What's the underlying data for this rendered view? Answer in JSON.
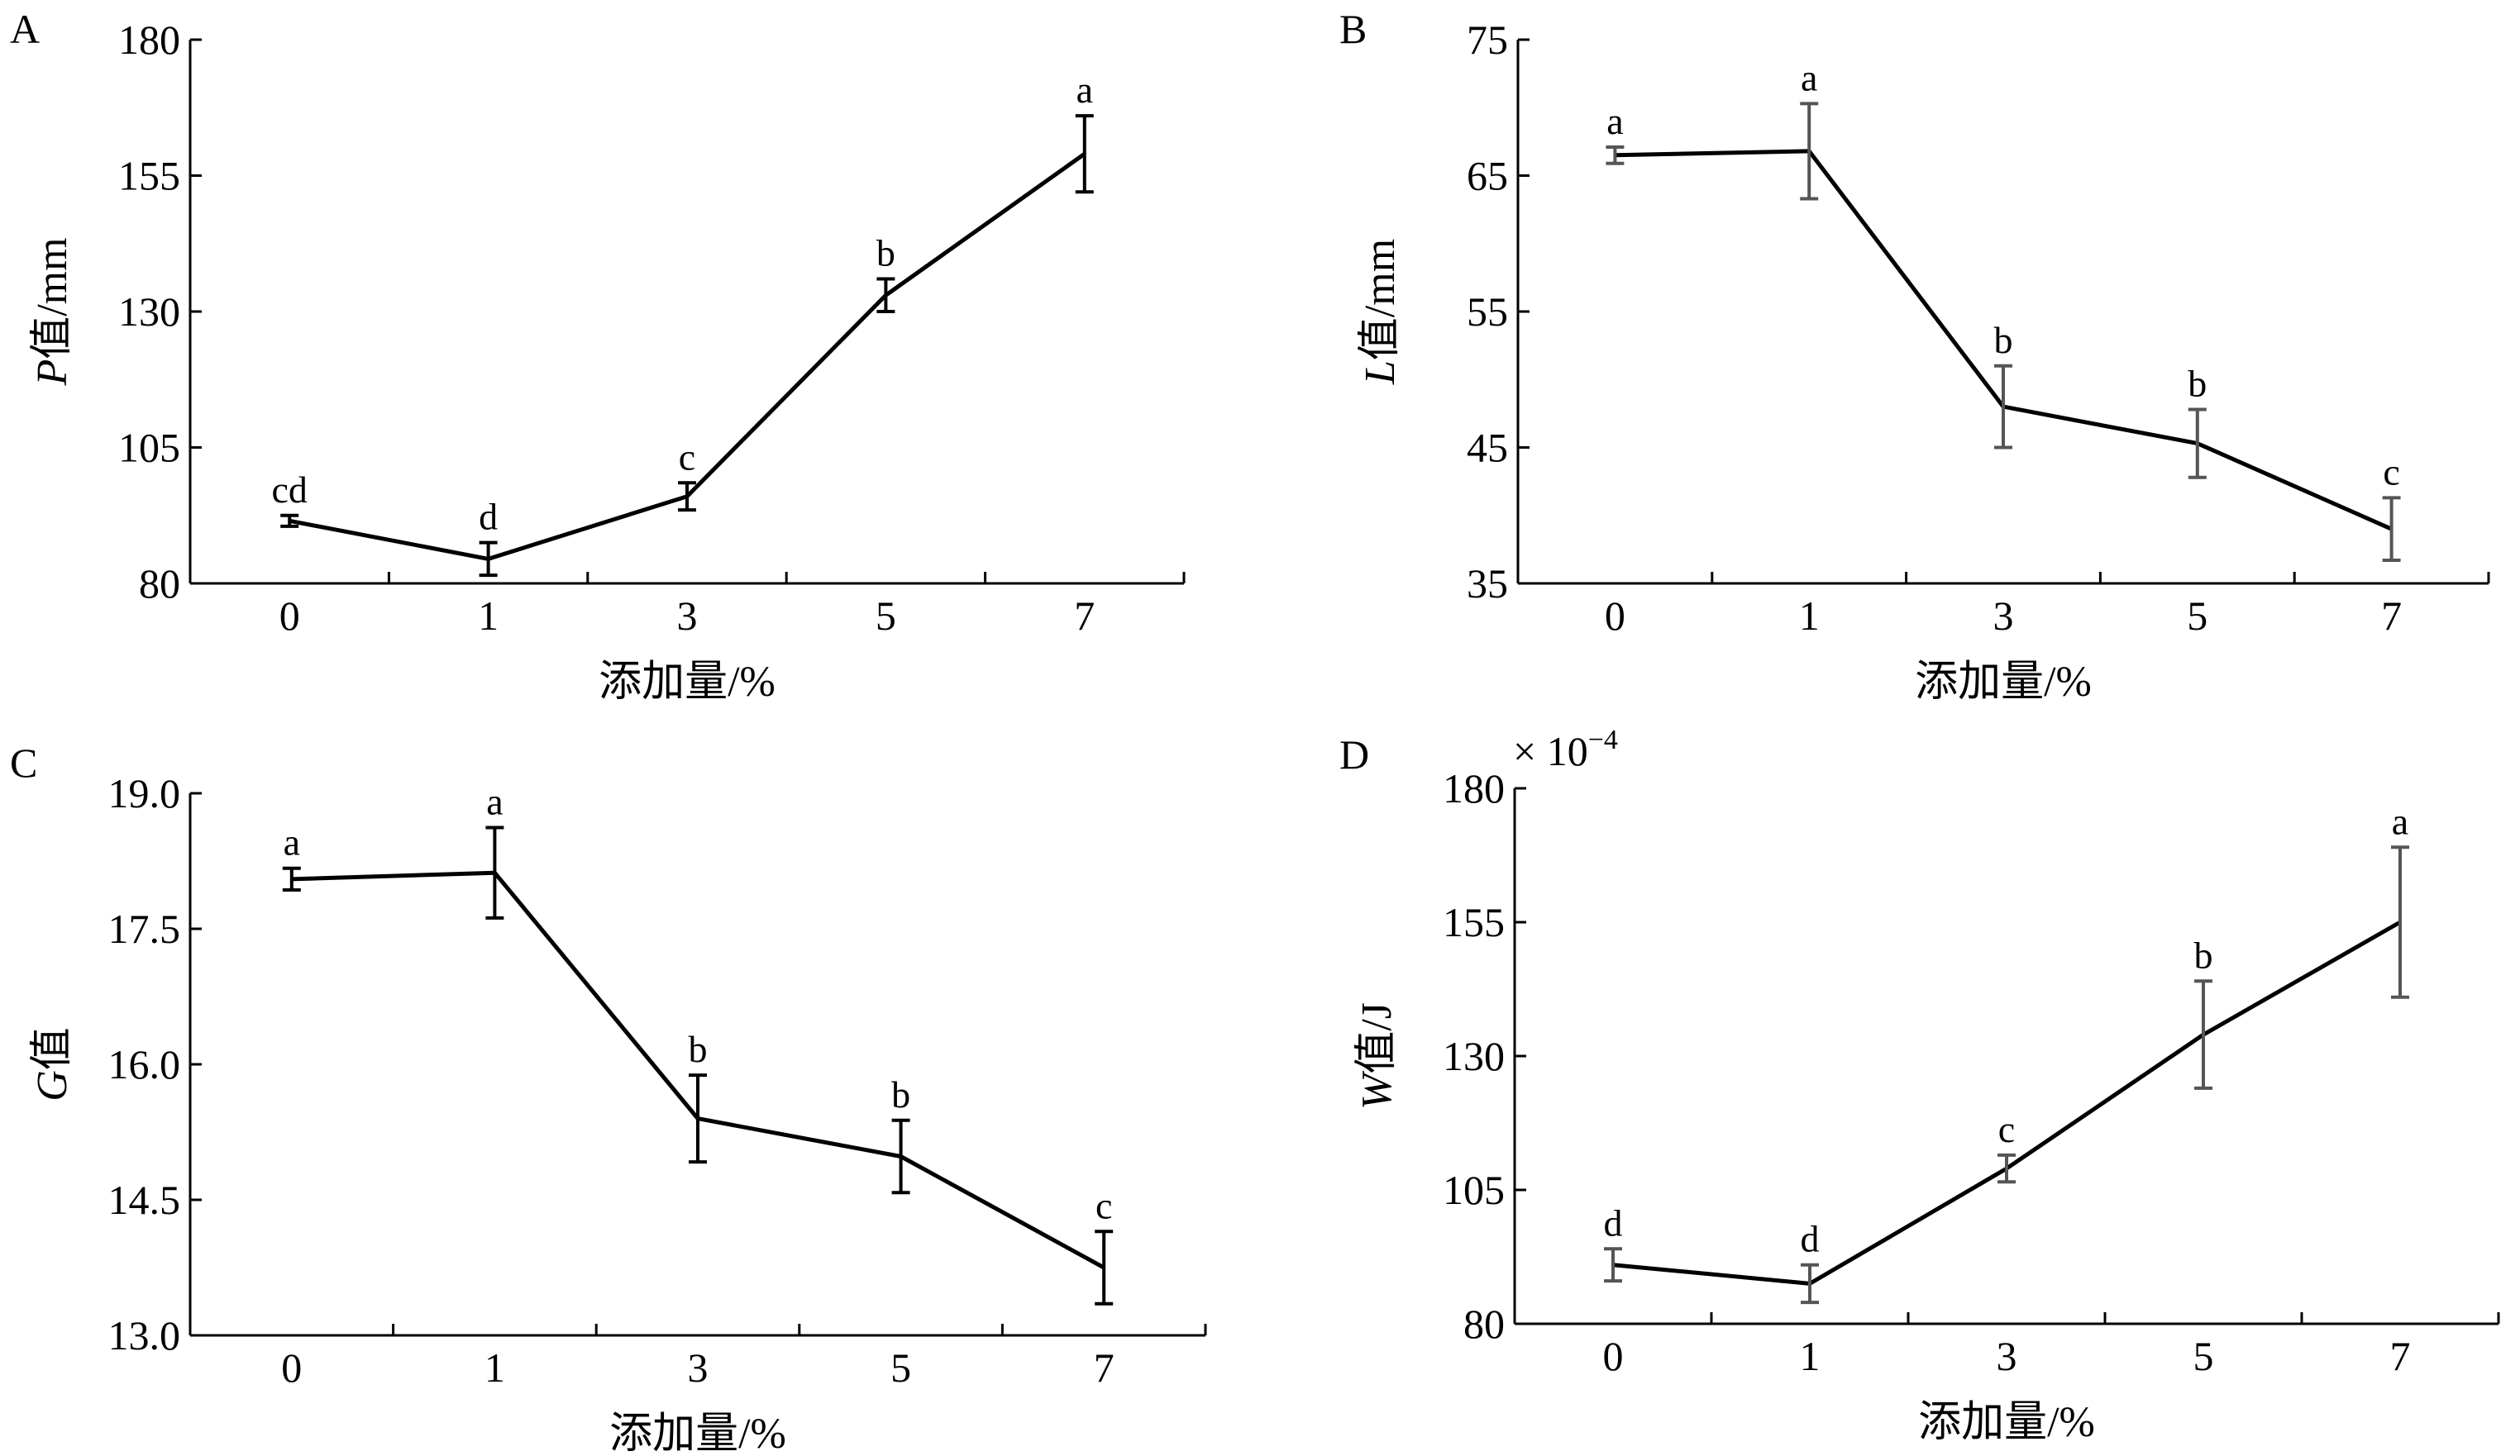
{
  "chart_data": [
    {
      "panel": "A",
      "type": "line",
      "categories": [
        "0",
        "1",
        "3",
        "5",
        "7"
      ],
      "values": [
        91.5,
        84.5,
        96,
        133,
        159
      ],
      "errors": [
        1,
        3,
        2.5,
        3,
        7
      ],
      "significance": [
        "cd",
        "d",
        "c",
        "b",
        "a"
      ],
      "ylabel": {
        "italic": "P",
        "rest": "值/mm"
      },
      "xlabel": "添加量/%",
      "ylim": [
        80,
        180
      ],
      "yticks": [
        "80",
        "105",
        "130",
        "155",
        "180"
      ],
      "yticks_values": [
        80,
        105,
        130,
        155,
        180
      ],
      "multiplier": "",
      "errorbar_color": "#000000"
    },
    {
      "panel": "B",
      "type": "line",
      "categories": [
        "0",
        "1",
        "3",
        "5",
        "7"
      ],
      "values": [
        66.5,
        66.8,
        48,
        45.3,
        39
      ],
      "errors": [
        0.6,
        3.5,
        3,
        2.5,
        2.3
      ],
      "significance": [
        "a",
        "a",
        "b",
        "b",
        "c"
      ],
      "ylabel": {
        "italic": "L",
        "rest": "值/mm"
      },
      "xlabel": "添加量/%",
      "ylim": [
        35,
        75
      ],
      "yticks": [
        "35",
        "45",
        "55",
        "65",
        "75"
      ],
      "yticks_values": [
        35,
        45,
        55,
        65,
        75
      ],
      "multiplier": "",
      "errorbar_color": "#555555"
    },
    {
      "panel": "C",
      "type": "line",
      "categories": [
        "0",
        "1",
        "3",
        "5",
        "7"
      ],
      "values": [
        18.05,
        18.12,
        15.4,
        14.98,
        13.75
      ],
      "errors": [
        0.12,
        0.5,
        0.48,
        0.4,
        0.4
      ],
      "significance": [
        "a",
        "a",
        "b",
        "b",
        "c"
      ],
      "ylabel": {
        "italic": "G",
        "rest": "值"
      },
      "xlabel": "添加量/%",
      "ylim": [
        13.0,
        19.0
      ],
      "yticks": [
        "13.0",
        "14.5",
        "16.0",
        "17.5",
        "19.0"
      ],
      "yticks_values": [
        13.0,
        14.5,
        16.0,
        17.5,
        19.0
      ],
      "multiplier": "",
      "errorbar_color": "#000000"
    },
    {
      "panel": "D",
      "type": "line",
      "categories": [
        "0",
        "1",
        "3",
        "5",
        "7"
      ],
      "values": [
        91,
        87.5,
        109,
        134,
        155
      ],
      "errors": [
        3,
        3.5,
        2.5,
        10,
        14
      ],
      "significance": [
        "d",
        "d",
        "c",
        "b",
        "a"
      ],
      "ylabel": {
        "italic": "W",
        "rest": "值/J"
      },
      "xlabel": "添加量/%",
      "ylim": [
        80,
        180
      ],
      "yticks": [
        "80",
        "105",
        "130",
        "155",
        "180"
      ],
      "yticks_values": [
        80,
        105,
        130,
        155,
        180
      ],
      "multiplier": "× 10",
      "multiplier_exp": "−4",
      "errorbar_color": "#555555"
    }
  ]
}
